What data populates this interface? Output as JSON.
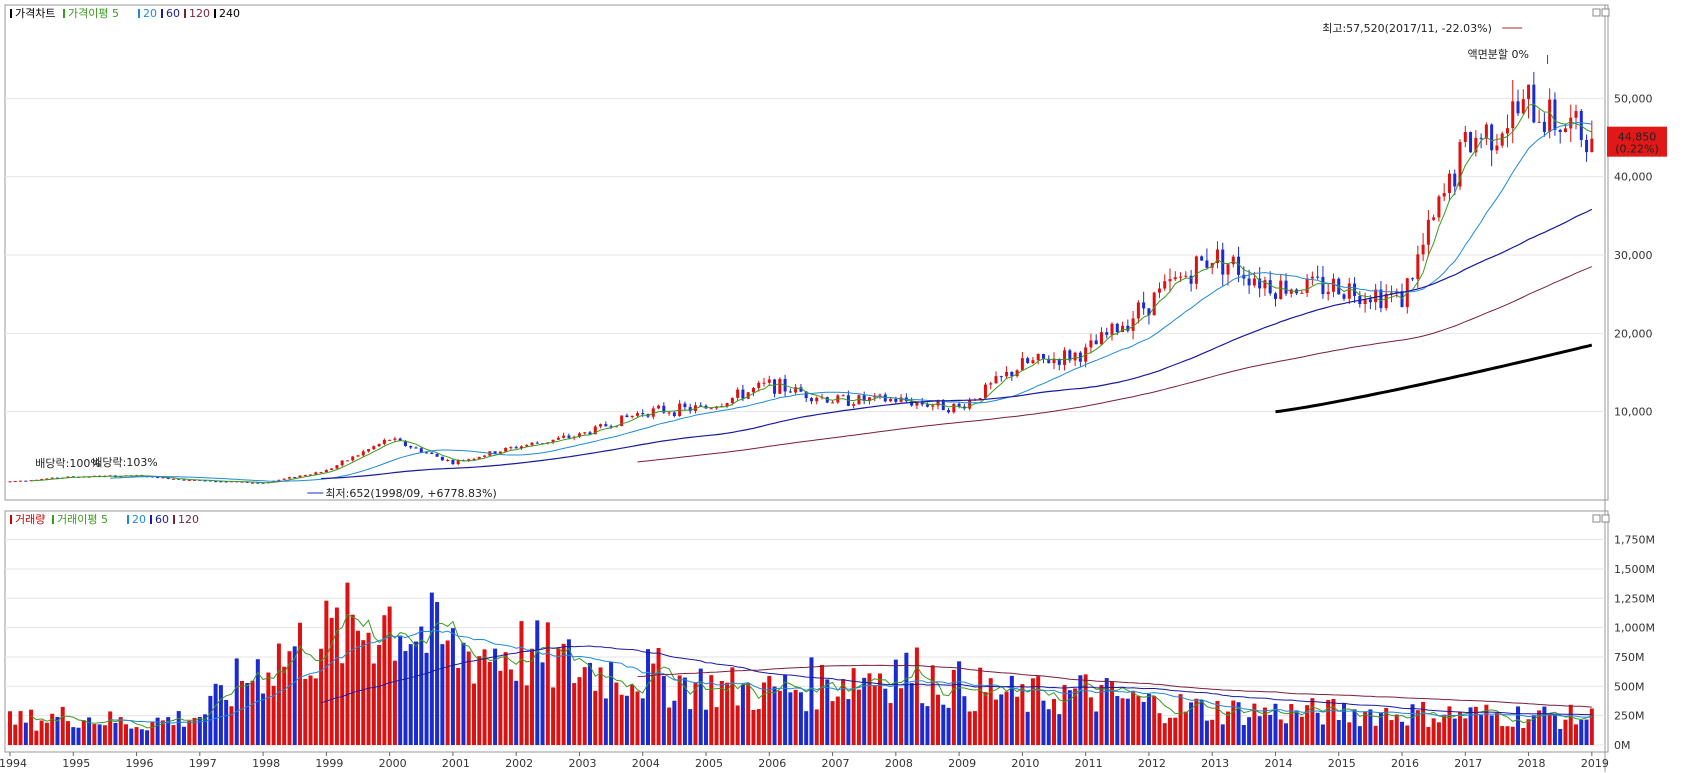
{
  "price_panel": {
    "legend": [
      {
        "label": "가격차트",
        "color": "#000000"
      },
      {
        "label": "가격이평 5",
        "color": "#3a9a20"
      },
      {
        "label": "20",
        "color": "#1f8ad6"
      },
      {
        "label": "60",
        "color": "#1a1aa0"
      },
      {
        "label": "120",
        "color": "#7a1f3a"
      },
      {
        "label": "240",
        "color": "#000000"
      }
    ],
    "y_ticks": [
      "10,000",
      "20,000",
      "30,000",
      "40,000",
      "50,000"
    ],
    "current_price": "44,850",
    "current_change": "(0.22%)",
    "annotations": {
      "high": "최고:57,520(2017/11, -22.03%)",
      "low": "최저:652(1998/09, +6778.83%)",
      "split": "액면분할 0%",
      "dividend": "배당락:100%",
      "dividend2": "배당락:103%"
    }
  },
  "volume_panel": {
    "legend": [
      {
        "label": "거래량",
        "color": "#cc0000"
      },
      {
        "label": "거래이평 5",
        "color": "#3a9a20"
      },
      {
        "label": "20",
        "color": "#1f8ad6"
      },
      {
        "label": "60",
        "color": "#1a1aa0"
      },
      {
        "label": "120",
        "color": "#7a1f3a"
      }
    ],
    "y_ticks": [
      "0M",
      "250M",
      "500M",
      "750M",
      "1,000M",
      "1,250M",
      "1,500M",
      "1,750M"
    ]
  },
  "x_axis": {
    "labels": [
      "1994",
      "1995",
      "1996",
      "1997",
      "1998",
      "1999",
      "2000",
      "2001",
      "2002",
      "2003",
      "2004",
      "2005",
      "2006",
      "2007",
      "2008",
      "2009",
      "2010",
      "2011",
      "2012",
      "2013",
      "2014",
      "2015",
      "2016",
      "2017",
      "2018",
      "2019"
    ]
  },
  "chart_data": {
    "type": "candlestick",
    "interval": "monthly",
    "x_range": [
      "1994-01",
      "2019-01"
    ],
    "price_ylim": [
      0,
      60000
    ],
    "volume_ylim": [
      0,
      1900
    ],
    "volume_unit": "M",
    "close_by_year": [
      {
        "year": 1994,
        "price": 1100
      },
      {
        "year": 1995,
        "price": 1700
      },
      {
        "year": 1996,
        "price": 1800
      },
      {
        "year": 1997,
        "price": 1200
      },
      {
        "year": 1998,
        "price": 900
      },
      {
        "year": 1999,
        "price": 2500
      },
      {
        "year": 2000,
        "price": 6500
      },
      {
        "year": 2001,
        "price": 3500
      },
      {
        "year": 2002,
        "price": 5500
      },
      {
        "year": 2003,
        "price": 7000
      },
      {
        "year": 2004,
        "price": 10000
      },
      {
        "year": 2005,
        "price": 10500
      },
      {
        "year": 2006,
        "price": 13500
      },
      {
        "year": 2007,
        "price": 11500
      },
      {
        "year": 2008,
        "price": 11500
      },
      {
        "year": 2009,
        "price": 10500
      },
      {
        "year": 2010,
        "price": 16000
      },
      {
        "year": 2011,
        "price": 17500
      },
      {
        "year": 2012,
        "price": 24000
      },
      {
        "year": 2013,
        "price": 30000
      },
      {
        "year": 2014,
        "price": 26000
      },
      {
        "year": 2015,
        "price": 26000
      },
      {
        "year": 2016,
        "price": 24500
      },
      {
        "year": 2017,
        "price": 44000
      },
      {
        "year": 2018,
        "price": 49000
      },
      {
        "year": 2019,
        "price": 44850
      }
    ],
    "ma240_range": [
      {
        "year": 2014.0,
        "price": 10000
      },
      {
        "year": 2019.0,
        "price": 18500
      }
    ],
    "volume_by_year": [
      {
        "year": 1994,
        "volume": 200
      },
      {
        "year": 1995,
        "volume": 250
      },
      {
        "year": 1996,
        "volume": 180
      },
      {
        "year": 1997,
        "volume": 250
      },
      {
        "year": 1998,
        "volume": 700
      },
      {
        "year": 1999,
        "volume": 900
      },
      {
        "year": 2000,
        "volume": 1100
      },
      {
        "year": 2001,
        "volume": 800
      },
      {
        "year": 2002,
        "volume": 800
      },
      {
        "year": 2003,
        "volume": 650
      },
      {
        "year": 2004,
        "volume": 600
      },
      {
        "year": 2005,
        "volume": 500
      },
      {
        "year": 2006,
        "volume": 450
      },
      {
        "year": 2007,
        "volume": 550
      },
      {
        "year": 2008,
        "volume": 650
      },
      {
        "year": 2009,
        "volume": 500
      },
      {
        "year": 2010,
        "volume": 400
      },
      {
        "year": 2011,
        "volume": 450
      },
      {
        "year": 2012,
        "volume": 350
      },
      {
        "year": 2013,
        "volume": 300
      },
      {
        "year": 2014,
        "volume": 280
      },
      {
        "year": 2015,
        "volume": 280
      },
      {
        "year": 2016,
        "volume": 270
      },
      {
        "year": 2017,
        "volume": 260
      },
      {
        "year": 2018,
        "volume": 250
      },
      {
        "year": 2019,
        "volume": 230
      }
    ]
  }
}
